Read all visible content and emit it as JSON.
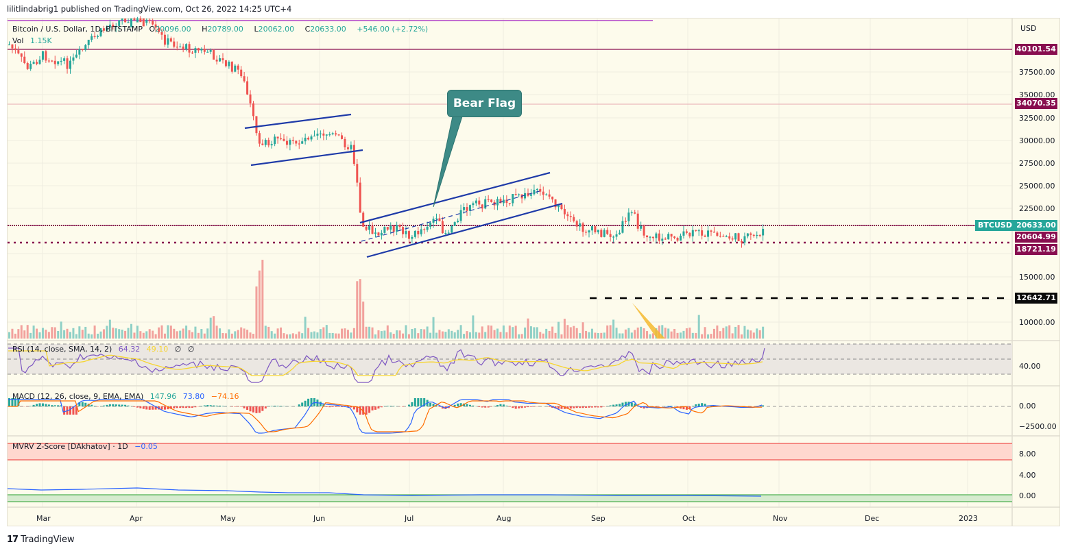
{
  "header": {
    "published_line": "lilitlindabrig1 published on TradingView.com, Oct 26, 2022 14:25 UTC+4"
  },
  "legend": {
    "symbol": "Bitcoin / U.S. Dollar, 1D, BITSTAMP",
    "open_label": "O",
    "open": "20096.00",
    "high_label": "H",
    "high": "20789.00",
    "low_label": "L",
    "low": "20062.00",
    "close_label": "C",
    "close": "20633.00",
    "change": "+546.00 (+2.72%)",
    "vol_label": "Vol",
    "vol": "1.15K"
  },
  "rsi": {
    "label": "RSI (14, close, SMA, 14, 2)",
    "value": "64.32",
    "sma": "49.10",
    "extra1": "∅",
    "extra2": "∅"
  },
  "macd": {
    "label": "MACD (12, 26, close, 9, EMA, EMA)",
    "hist": "147.96",
    "macd": "73.80",
    "signal": "−74.16"
  },
  "mvrv": {
    "label": "MVRV Z-Score [DAkhatov] · 1D",
    "value": "−0.05"
  },
  "annotation": {
    "bear_flag": "Bear Flag"
  },
  "price_axis": {
    "currency": "USD",
    "ticks": [
      "37500.00",
      "35000.00",
      "32500.00",
      "30000.00",
      "27500.00",
      "25000.00",
      "22500.00",
      "15000.00",
      "10000.00"
    ],
    "tags": {
      "resistance_1": "40101.54",
      "resistance_2": "34070.35",
      "current": "20633.00",
      "support_1": "20604.99",
      "support_2": "18721.19",
      "target": "12642.71"
    },
    "symbol_tag": "BTCUSD"
  },
  "rsi_axis": {
    "ticks": [
      "40.00"
    ]
  },
  "macd_axis": {
    "ticks": [
      "0.00",
      "−2500.00"
    ]
  },
  "mvrv_axis": {
    "ticks": [
      "8.00",
      "4.00",
      "0.00"
    ]
  },
  "time_axis": {
    "labels": [
      "Mar",
      "Apr",
      "May",
      "Jun",
      "Jul",
      "Aug",
      "Sep",
      "Oct",
      "Nov",
      "Dec",
      "2023"
    ]
  },
  "branding": {
    "logo_mark": "17",
    "name": "TradingView"
  },
  "colors": {
    "up": "#26a69a",
    "down": "#ef5350",
    "level_line": "#880e4f",
    "channel": "#1e3aa8",
    "bear_flag_bg": "#3d8a86",
    "rsi_line": "#7e57c2",
    "rsi_sma": "#f7d531",
    "macd_line": "#2962ff",
    "signal_line": "#ff6d00",
    "background": "#fdfbec"
  },
  "chart_data": {
    "type": "candlestick",
    "title": "Bitcoin / U.S. Dollar, 1D, BITSTAMP",
    "xlabel": "",
    "ylabel": "USD",
    "x_range": [
      "Feb 2022",
      "Jan 2023"
    ],
    "ylim": [
      7500,
      42000
    ],
    "grid": true,
    "ohlc_last": {
      "open": 20096.0,
      "high": 20789.0,
      "low": 20062.0,
      "close": 20633.0,
      "change": 546.0,
      "change_pct": 2.72
    },
    "approx_monthly_close": {
      "categories": [
        "Mar",
        "Apr",
        "May",
        "Jun",
        "Jul",
        "Aug",
        "Sep",
        "Oct"
      ],
      "values": [
        44000,
        45500,
        37500,
        30000,
        19500,
        23500,
        20000,
        19500
      ]
    },
    "horizontal_levels": [
      {
        "value": 40101.54,
        "style": "solid",
        "color": "#880e4f"
      },
      {
        "value": 34070.35,
        "style": "solid",
        "color": "#e8a0a8"
      },
      {
        "value": 20633.0,
        "style": "dotted",
        "color": "#880e4f",
        "label": "BTCUSD"
      },
      {
        "value": 20604.99,
        "style": "dotted",
        "color": "#880e4f"
      },
      {
        "value": 18721.19,
        "style": "dotted",
        "color": "#880e4f"
      },
      {
        "value": 12642.71,
        "style": "dashed",
        "color": "#000000"
      }
    ],
    "annotations": [
      {
        "text": "Bear Flag",
        "type": "callout"
      },
      {
        "text": "channel May-Jun",
        "type": "parallel_channel",
        "range": [
          28500,
          32500
        ]
      },
      {
        "text": "channel Jun-Aug",
        "type": "parallel_channel",
        "range": [
          18500,
          26000
        ]
      }
    ],
    "indicators": {
      "volume": {
        "last": "1.15K"
      },
      "rsi": {
        "value": 64.32,
        "sma": 49.1,
        "bands": [
          30,
          50,
          70
        ]
      },
      "macd": {
        "histogram": 147.96,
        "macd": 73.8,
        "signal": -74.16
      },
      "mvrv_zscore": {
        "value": -0.05,
        "bands": {
          "red": [
            7,
            10
          ],
          "green": [
            -0.5,
            0.5
          ]
        }
      }
    }
  }
}
